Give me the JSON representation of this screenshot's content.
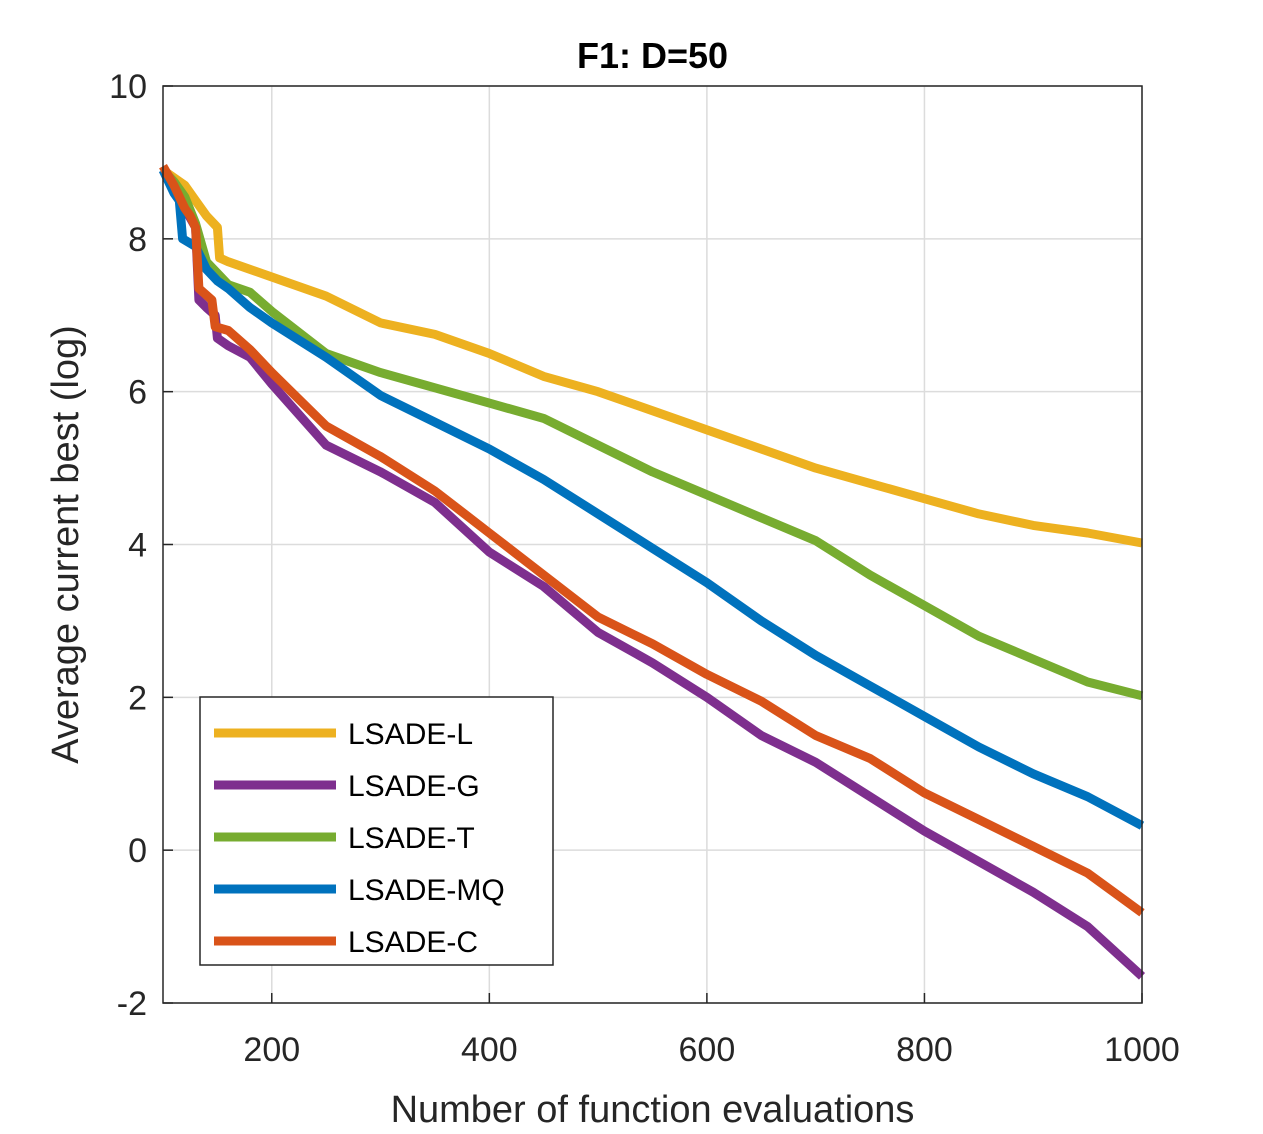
{
  "chart_data": {
    "type": "line",
    "title": "F1: D=50",
    "xlabel": "Number of function evaluations",
    "ylabel": "Average current best (log)",
    "xlim": [
      100,
      1000
    ],
    "ylim": [
      -2,
      10
    ],
    "xticks": [
      200,
      400,
      600,
      800,
      1000
    ],
    "yticks": [
      -2,
      0,
      2,
      4,
      6,
      8,
      10
    ],
    "xtick_labels": [
      "200",
      "400",
      "600",
      "800",
      "1000"
    ],
    "ytick_labels": [
      "-2",
      "0",
      "2",
      "4",
      "6",
      "8",
      "10"
    ],
    "grid": true,
    "legend_position": "bottom-left",
    "series": [
      {
        "name": "LSADE-L",
        "color": "#EDB120",
        "x": [
          100,
          110,
          120,
          130,
          140,
          150,
          152,
          160,
          180,
          200,
          250,
          300,
          350,
          400,
          450,
          500,
          550,
          600,
          650,
          700,
          750,
          800,
          850,
          900,
          950,
          1000
        ],
        "y": [
          8.9,
          8.8,
          8.7,
          8.5,
          8.3,
          8.15,
          7.75,
          7.7,
          7.6,
          7.5,
          7.25,
          6.9,
          6.75,
          6.5,
          6.2,
          6.0,
          5.75,
          5.5,
          5.25,
          5.0,
          4.8,
          4.6,
          4.4,
          4.25,
          4.15,
          4.02
        ]
      },
      {
        "name": "LSADE-G",
        "color": "#7E2F8E",
        "x": [
          100,
          110,
          120,
          130,
          133,
          140,
          148,
          150,
          160,
          180,
          200,
          250,
          300,
          350,
          400,
          450,
          500,
          550,
          600,
          650,
          700,
          750,
          800,
          850,
          900,
          950,
          1000
        ],
        "y": [
          8.9,
          8.7,
          8.4,
          8.15,
          7.2,
          7.1,
          7.0,
          6.7,
          6.6,
          6.45,
          6.1,
          5.3,
          4.95,
          4.55,
          3.9,
          3.45,
          2.85,
          2.45,
          2.0,
          1.5,
          1.15,
          0.7,
          0.25,
          -0.15,
          -0.55,
          -1.0,
          -1.65
        ]
      },
      {
        "name": "LSADE-T",
        "color": "#77AC30",
        "x": [
          100,
          110,
          120,
          130,
          140,
          150,
          160,
          180,
          200,
          250,
          300,
          350,
          400,
          450,
          500,
          550,
          600,
          650,
          700,
          750,
          800,
          850,
          900,
          950,
          1000
        ],
        "y": [
          8.9,
          8.75,
          8.55,
          8.2,
          7.7,
          7.55,
          7.4,
          7.3,
          7.05,
          6.5,
          6.25,
          6.05,
          5.85,
          5.65,
          5.3,
          4.95,
          4.65,
          4.35,
          4.05,
          3.6,
          3.2,
          2.8,
          2.5,
          2.2,
          2.02
        ]
      },
      {
        "name": "LSADE-MQ",
        "color": "#0072BD",
        "x": [
          100,
          110,
          115,
          118,
          130,
          140,
          150,
          160,
          180,
          200,
          250,
          300,
          350,
          400,
          450,
          500,
          550,
          600,
          650,
          700,
          750,
          800,
          850,
          900,
          950,
          1000
        ],
        "y": [
          8.9,
          8.6,
          8.5,
          8.0,
          7.9,
          7.6,
          7.45,
          7.35,
          7.1,
          6.9,
          6.45,
          5.95,
          5.6,
          5.25,
          4.85,
          4.4,
          3.95,
          3.5,
          3.0,
          2.55,
          2.15,
          1.75,
          1.35,
          1.0,
          0.7,
          0.32
        ]
      },
      {
        "name": "LSADE-C",
        "color": "#D95319",
        "x": [
          100,
          110,
          120,
          125,
          130,
          133,
          145,
          148,
          160,
          180,
          200,
          250,
          300,
          350,
          400,
          450,
          500,
          550,
          600,
          650,
          700,
          750,
          800,
          850,
          900,
          950,
          1000
        ],
        "y": [
          8.95,
          8.7,
          8.4,
          8.3,
          8.15,
          7.35,
          7.2,
          6.85,
          6.8,
          6.55,
          6.25,
          5.55,
          5.15,
          4.7,
          4.15,
          3.6,
          3.05,
          2.7,
          2.3,
          1.95,
          1.5,
          1.2,
          0.75,
          0.4,
          0.05,
          -0.3,
          -0.82
        ]
      }
    ]
  }
}
